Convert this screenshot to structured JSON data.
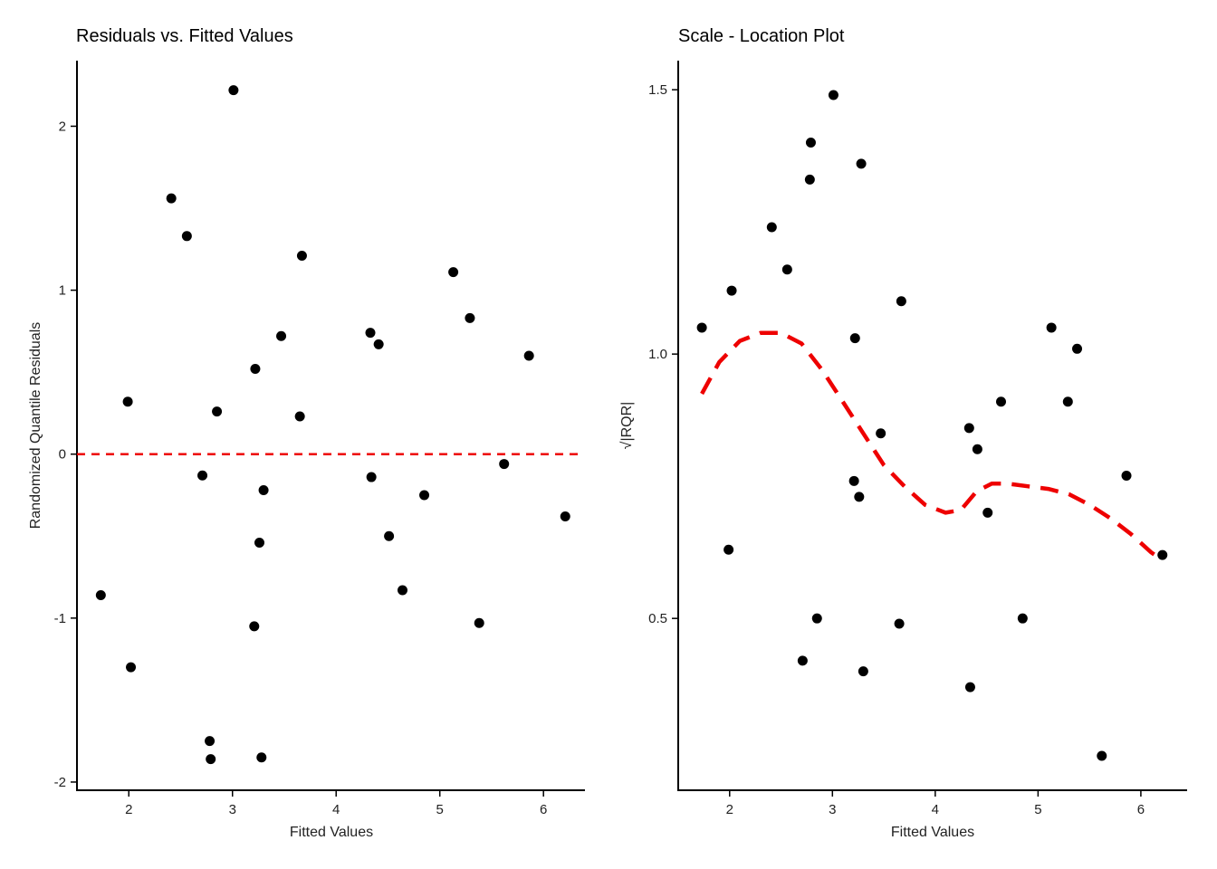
{
  "chart_data": [
    {
      "type": "scatter",
      "title": "Residuals vs. Fitted Values",
      "xlabel": "Fitted Values",
      "ylabel": "Randomized Quantile Residuals",
      "xlim": [
        1.5,
        6.4
      ],
      "ylim": [
        -2.05,
        2.4
      ],
      "xticks": [
        2,
        3,
        4,
        5,
        6
      ],
      "xtick_labels": [
        "2",
        "3",
        "4",
        "5",
        "6"
      ],
      "yticks": [
        -2,
        -1,
        0,
        1,
        2
      ],
      "ytick_labels": [
        "-2",
        "-1",
        "0",
        "1",
        "2"
      ],
      "grid": false,
      "reference_line": {
        "y": 0,
        "style": "dashed",
        "color": "#ee0000"
      },
      "points": {
        "x": [
          1.73,
          1.99,
          2.02,
          2.41,
          2.56,
          2.71,
          2.78,
          2.79,
          2.85,
          3.01,
          3.21,
          3.22,
          3.26,
          3.28,
          3.3,
          3.47,
          3.65,
          3.67,
          4.33,
          4.34,
          4.41,
          4.51,
          4.64,
          4.85,
          5.13,
          5.29,
          5.38,
          5.62,
          5.86,
          6.21
        ],
        "y": [
          -0.86,
          0.32,
          -1.3,
          1.56,
          1.33,
          -0.13,
          -1.75,
          -1.86,
          0.26,
          2.22,
          -1.05,
          0.52,
          -0.54,
          -1.85,
          -0.22,
          0.72,
          0.23,
          1.21,
          0.74,
          -0.14,
          0.67,
          -0.5,
          -0.83,
          -0.25,
          1.11,
          0.83,
          -1.03,
          -0.06,
          0.6,
          -0.38
        ]
      },
      "colors": {
        "points": "#000000",
        "reference_line": "#ee0000"
      }
    },
    {
      "type": "scatter",
      "title": "Scale - Location Plot",
      "xlabel": "Fitted Values",
      "ylabel": "√|RQR|",
      "xlim": [
        1.5,
        6.45
      ],
      "ylim": [
        0.175,
        1.555
      ],
      "xticks": [
        2,
        3,
        4,
        5,
        6
      ],
      "xtick_labels": [
        "2",
        "3",
        "4",
        "5",
        "6"
      ],
      "yticks": [
        0.5,
        1.0,
        1.5
      ],
      "ytick_labels": [
        "0.5",
        "1.0",
        "1.5"
      ],
      "grid": false,
      "points": {
        "x": [
          1.73,
          1.99,
          2.02,
          2.41,
          2.56,
          2.71,
          2.78,
          2.79,
          2.85,
          3.01,
          3.21,
          3.22,
          3.26,
          3.28,
          3.3,
          3.47,
          3.65,
          3.67,
          4.33,
          4.34,
          4.41,
          4.51,
          4.64,
          4.85,
          5.13,
          5.29,
          5.38,
          5.62,
          5.86,
          6.21
        ],
        "y": [
          1.05,
          0.63,
          1.12,
          1.24,
          1.16,
          0.42,
          1.33,
          1.4,
          0.5,
          1.49,
          0.76,
          1.03,
          0.73,
          1.36,
          0.4,
          0.85,
          0.49,
          1.1,
          0.86,
          0.37,
          0.82,
          0.7,
          0.91,
          0.5,
          1.05,
          0.91,
          1.01,
          0.24,
          0.77,
          0.62
        ]
      },
      "smooth": {
        "style": "dashed",
        "color": "#ee0000",
        "x": [
          1.73,
          1.9,
          2.1,
          2.3,
          2.5,
          2.7,
          2.9,
          3.1,
          3.3,
          3.5,
          3.7,
          3.9,
          4.1,
          4.25,
          4.4,
          4.55,
          4.7,
          4.9,
          5.1,
          5.3,
          5.5,
          5.7,
          5.9,
          6.1,
          6.21
        ],
        "y": [
          0.925,
          0.985,
          1.025,
          1.04,
          1.04,
          1.02,
          0.97,
          0.91,
          0.85,
          0.79,
          0.75,
          0.715,
          0.7,
          0.705,
          0.74,
          0.755,
          0.755,
          0.75,
          0.745,
          0.735,
          0.715,
          0.69,
          0.66,
          0.625,
          0.61
        ]
      },
      "colors": {
        "points": "#000000",
        "smooth": "#ee0000"
      }
    }
  ]
}
